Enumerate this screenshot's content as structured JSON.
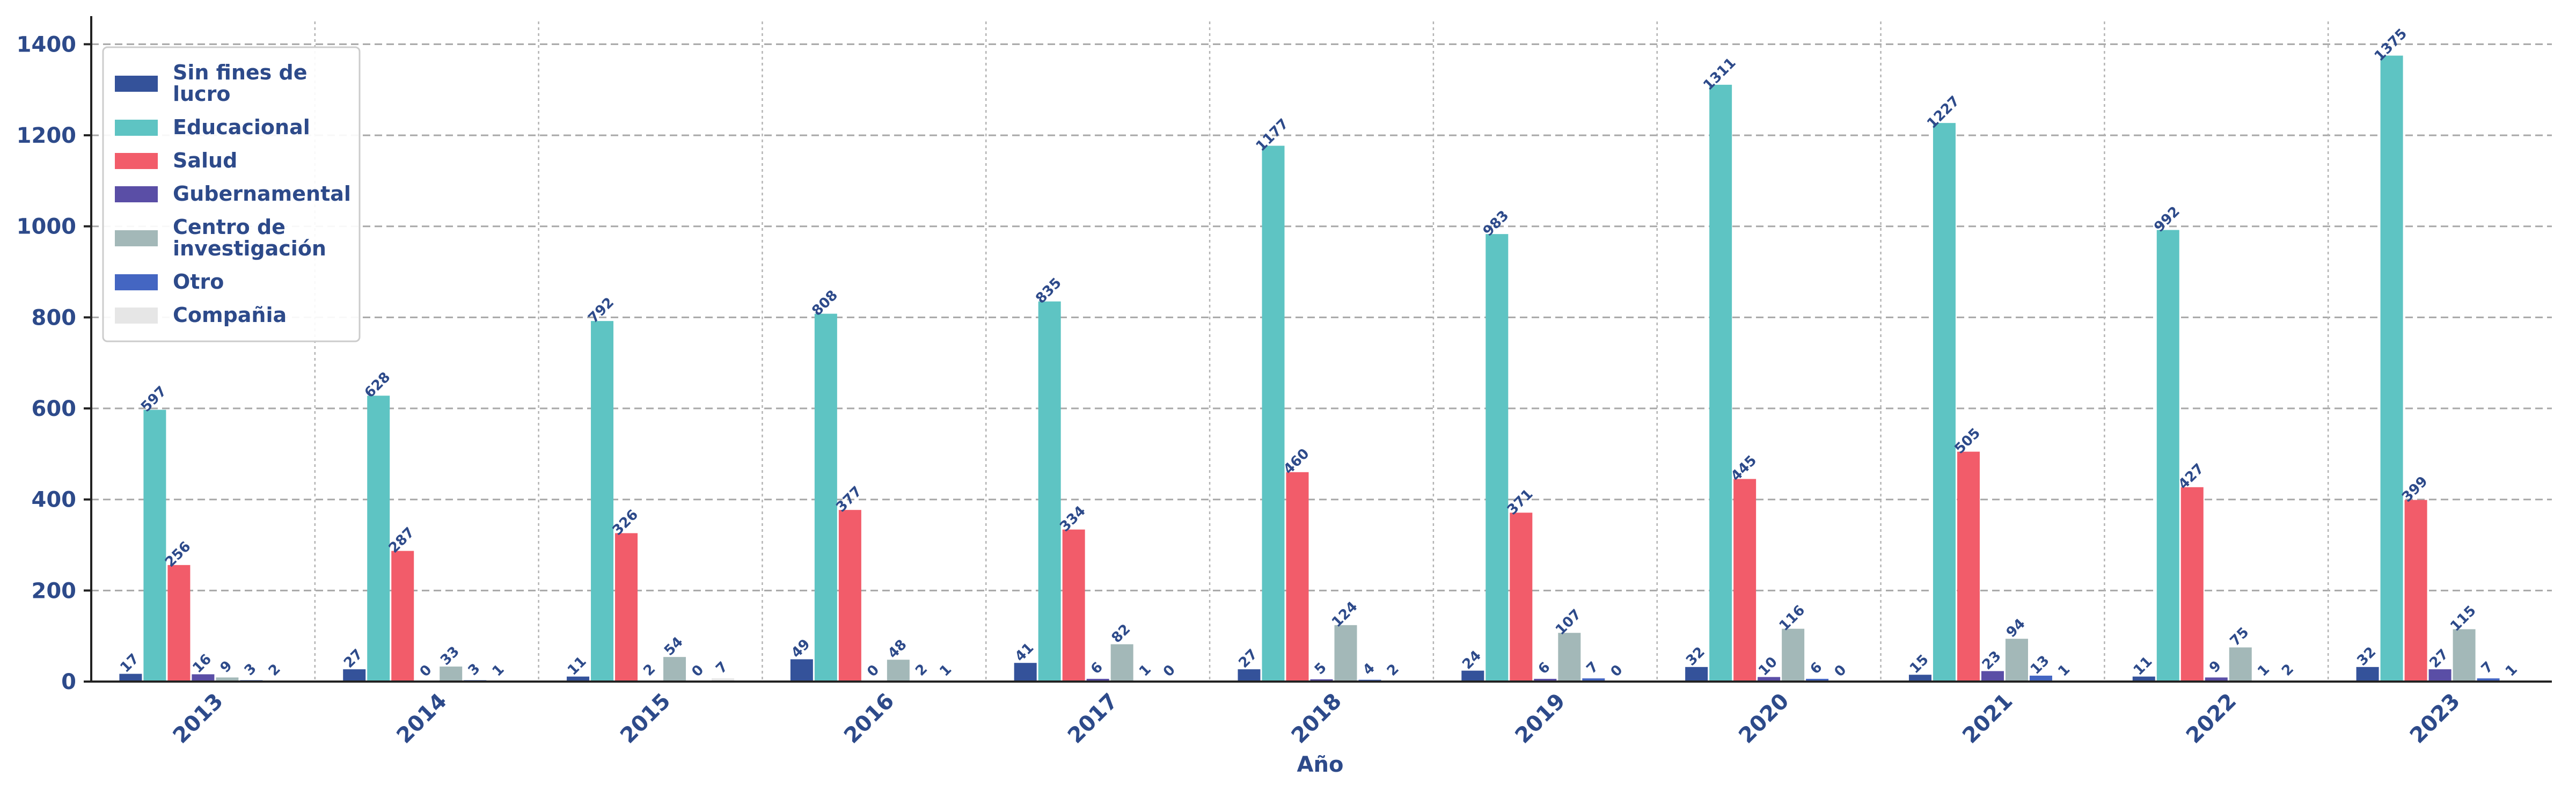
{
  "chart_data": {
    "type": "bar",
    "title": "",
    "xlabel": "Año",
    "ylabel": "",
    "ylim": [
      0,
      1450
    ],
    "yticks": [
      0,
      200,
      400,
      600,
      800,
      1000,
      1200,
      1400
    ],
    "grid": true,
    "legend_position": "top-left",
    "categories": [
      "2013",
      "2014",
      "2015",
      "2016",
      "2017",
      "2018",
      "2019",
      "2020",
      "2021",
      "2022",
      "2023"
    ],
    "series": [
      {
        "name": "Sin fines de lucro",
        "color": "#34529a",
        "values": [
          17,
          27,
          11,
          49,
          41,
          27,
          24,
          32,
          15,
          11,
          32
        ]
      },
      {
        "name": "Educacional",
        "color": "#5ec4c3",
        "values": [
          597,
          628,
          792,
          808,
          835,
          1177,
          983,
          1311,
          1227,
          992,
          1375
        ]
      },
      {
        "name": "Salud",
        "color": "#f25c6a",
        "values": [
          256,
          287,
          326,
          377,
          334,
          460,
          371,
          445,
          505,
          427,
          399
        ]
      },
      {
        "name": "Gubernamental",
        "color": "#5a4ea6",
        "values": [
          16,
          0,
          2,
          0,
          6,
          5,
          6,
          10,
          23,
          9,
          27
        ]
      },
      {
        "name": "Centro de investigación",
        "color": "#a3b8b8",
        "values": [
          9,
          33,
          54,
          48,
          82,
          124,
          107,
          116,
          94,
          75,
          115
        ]
      },
      {
        "name": "Otro",
        "color": "#4466c2",
        "values": [
          3,
          3,
          0,
          2,
          1,
          4,
          7,
          6,
          13,
          1,
          7
        ]
      },
      {
        "name": "Compañia",
        "color": "#e6e6e6",
        "values": [
          2,
          1,
          7,
          1,
          0,
          2,
          0,
          0,
          1,
          2,
          1
        ]
      }
    ]
  }
}
